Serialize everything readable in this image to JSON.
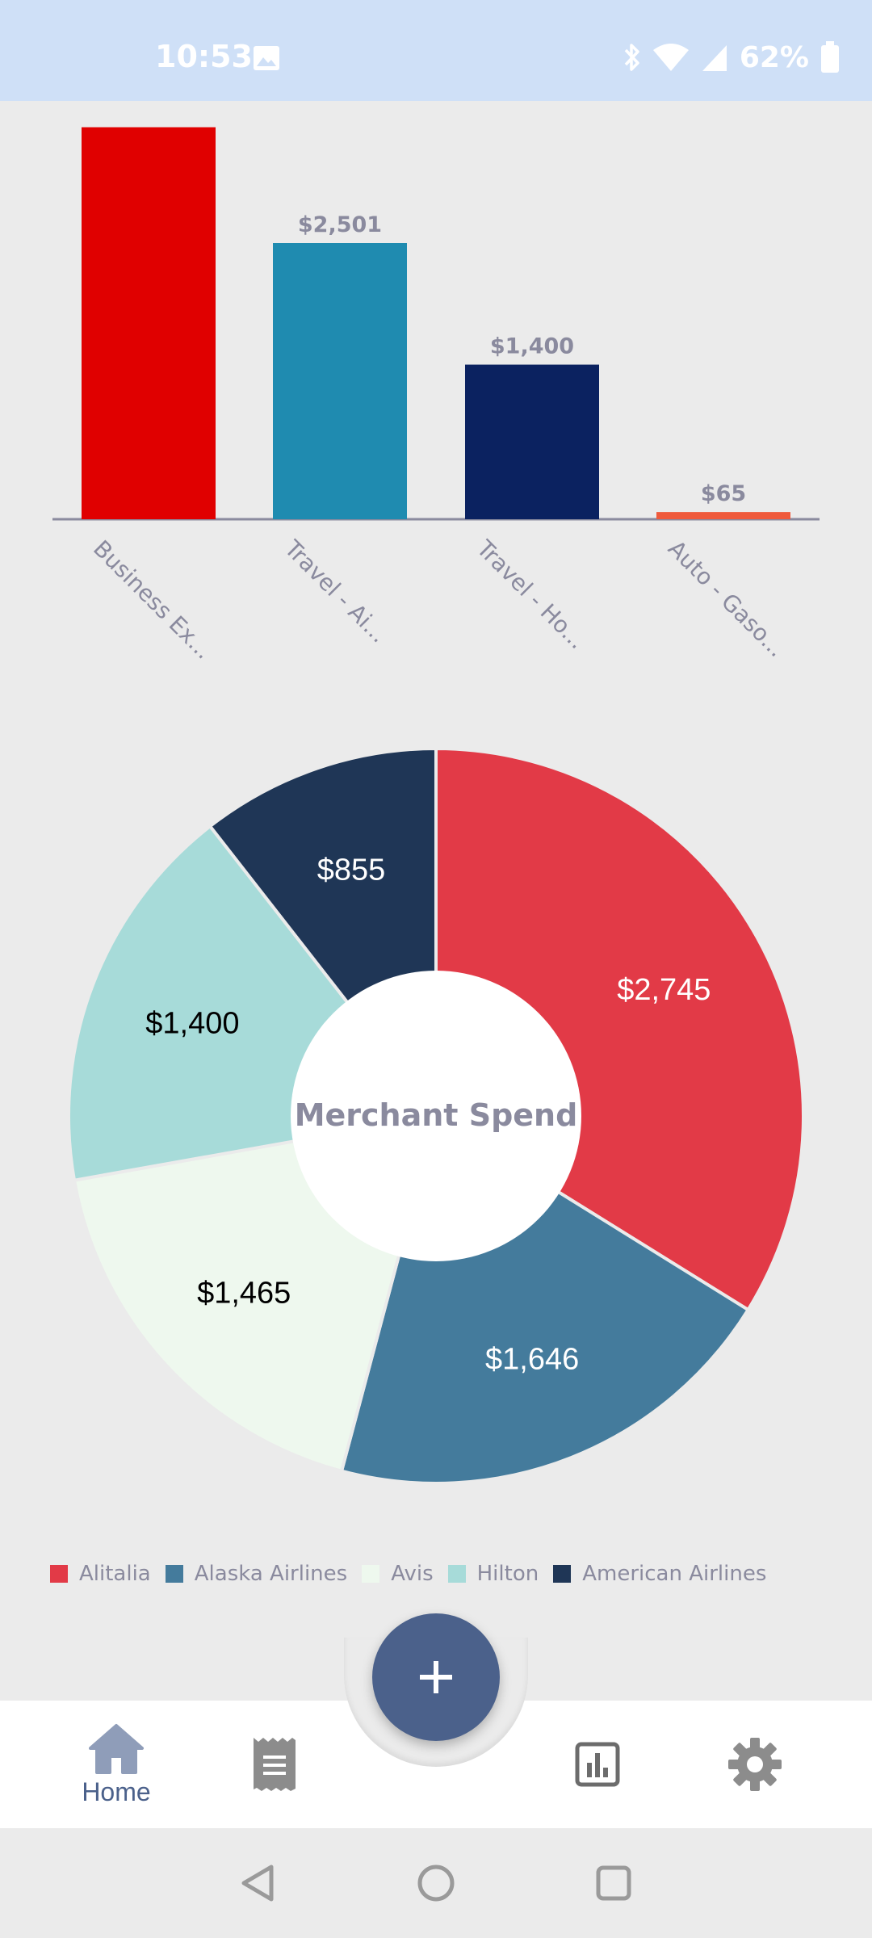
{
  "status_bar": {
    "time": "10:53",
    "battery": "62%",
    "icons": [
      "image-icon",
      "bluetooth-icon",
      "wifi-icon",
      "signal-icon",
      "battery-icon"
    ]
  },
  "chart_data": [
    {
      "type": "bar",
      "categories": [
        "Business Ex...",
        "Travel - Ai...",
        "Travel - Ho...",
        "Auto - Gaso..."
      ],
      "values": [
        3550,
        2501,
        1400,
        65
      ],
      "data_labels": [
        "",
        "$2,501",
        "$1,400",
        "$65"
      ],
      "colors": [
        "#e00000",
        "#1f8bb0",
        "#0b2260",
        "#ef5a3c"
      ],
      "title": "",
      "xlabel": "",
      "ylabel": ""
    },
    {
      "type": "pie",
      "title": "Merchant Spend",
      "categories": [
        "Alitalia",
        "Alaska Airlines",
        "Avis",
        "Hilton",
        "American Airlines"
      ],
      "values": [
        2745,
        1646,
        1465,
        1400,
        855
      ],
      "data_labels": [
        "$2,745",
        "$1,646",
        "$1,465",
        "$1,400",
        "$855"
      ],
      "colors": [
        "#e23a47",
        "#447b9c",
        "#eef8ee",
        "#a7dbd9",
        "#1f3656"
      ],
      "label_colors": [
        "#ffffff",
        "#ffffff",
        "#000000",
        "#000000",
        "#ffffff"
      ],
      "legend_position": "bottom"
    }
  ],
  "legend": {
    "items": [
      {
        "label": "Alitalia",
        "color": "#e23a47"
      },
      {
        "label": "Alaska Airlines",
        "color": "#447b9c"
      },
      {
        "label": "Avis",
        "color": "#eef8ee"
      },
      {
        "label": "Hilton",
        "color": "#a7dbd9"
      },
      {
        "label": "American Airlines",
        "color": "#1f3656"
      }
    ]
  },
  "fab": {
    "icon": "plus-icon"
  },
  "bottom_nav": {
    "items": [
      {
        "id": "home",
        "label": "Home",
        "icon": "home-icon",
        "active": true
      },
      {
        "id": "receipts",
        "label": "",
        "icon": "receipt-icon",
        "active": false
      },
      {
        "id": "reports",
        "label": "",
        "icon": "bar-chart-icon",
        "active": false
      },
      {
        "id": "settings",
        "label": "",
        "icon": "gear-icon",
        "active": false
      }
    ]
  },
  "system_nav": {
    "icons": [
      "back-icon",
      "home-circle-icon",
      "recents-icon"
    ]
  },
  "colors": {
    "accent": "#4b618b",
    "background": "#ebebeb",
    "status_bar": "#cfe0f7",
    "nav_icon_inactive": "#8c8c8c"
  }
}
